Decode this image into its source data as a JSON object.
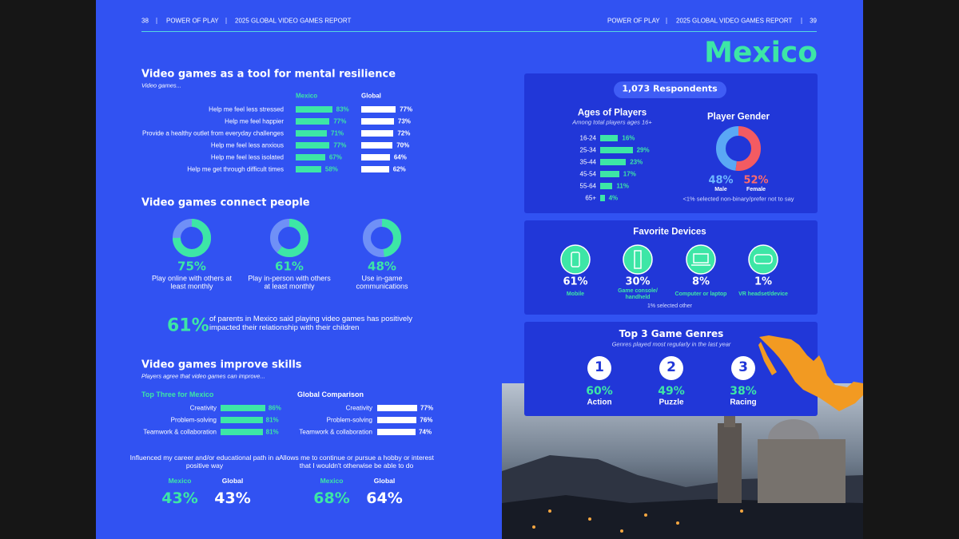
{
  "header": {
    "left_page": "38",
    "left_title": "POWER OF PLAY",
    "left_report": "2025 GLOBAL VIDEO GAMES REPORT",
    "right_title": "POWER OF PLAY",
    "right_report": "2025 GLOBAL VIDEO GAMES REPORT",
    "right_page": "39"
  },
  "country": "Mexico",
  "resilience": {
    "title": "Video games as a tool for mental resilience",
    "subtitle": "Video games...",
    "col_mexico": "Mexico",
    "col_global": "Global",
    "items": [
      "Help me feel less stressed",
      "Help me feel happier",
      "Provide a healthy outlet from everyday challenges",
      "Help me feel less anxious",
      "Help me feel less isolated",
      "Help me get through difficult times"
    ],
    "mexico_values": [
      83,
      77,
      71,
      77,
      67,
      58
    ],
    "mexico_value_labels": [
      "83%",
      "77%",
      "71%",
      "77%",
      "67%",
      "58%"
    ],
    "global_values": [
      77,
      73,
      72,
      70,
      64,
      62
    ],
    "global_value_labels": [
      "77%",
      "73%",
      "72%",
      "70%",
      "64%",
      "62%"
    ]
  },
  "connect": {
    "title": "Video games connect people",
    "donuts": [
      {
        "value": 75,
        "value_label": "75%",
        "caption": "Play online with others at least monthly"
      },
      {
        "value": 61,
        "value_label": "61%",
        "caption": "Play in-person with others at least monthly"
      },
      {
        "value": 48,
        "value_label": "48%",
        "caption": "Use in-game communications"
      }
    ],
    "parents_value": "61%",
    "parents_text": "of parents in Mexico said playing video games has positively impacted their relationship with their children"
  },
  "skills": {
    "title": "Video games improve skills",
    "subtitle": "Players agree that video games can improve...",
    "mexico_heading": "Top Three for Mexico",
    "global_heading": "Global Comparison",
    "mexico_items": [
      "Creativity",
      "Problem-solving",
      "Teamwork & collaboration"
    ],
    "mexico_values": [
      86,
      81,
      81
    ],
    "mexico_value_labels": [
      "86%",
      "81%",
      "81%"
    ],
    "global_items": [
      "Creativity",
      "Problem-solving",
      "Teamwork & collaboration"
    ],
    "global_values": [
      77,
      76,
      74
    ],
    "global_value_labels": [
      "77%",
      "76%",
      "74%"
    ],
    "stats": [
      {
        "caption": "Influenced my career and/or educational path in a positive way",
        "mexico_name": "Mexico",
        "global_name": "Global",
        "mexico": "43%",
        "global": "43%"
      },
      {
        "caption": "Allows me to continue or pursue a hobby or interest that I wouldn't otherwise be able to do",
        "mexico_name": "Mexico",
        "global_name": "Global",
        "mexico": "68%",
        "global": "64%"
      }
    ]
  },
  "respondents": "1,073 Respondents",
  "ages": {
    "title": "Ages of Players",
    "subtitle": "Among total players ages 16+",
    "groups": [
      "16-24",
      "25-34",
      "35-44",
      "45-54",
      "55-64",
      "65+"
    ],
    "values": [
      16,
      29,
      23,
      17,
      11,
      4
    ],
    "value_labels": [
      "16%",
      "29%",
      "23%",
      "17%",
      "11%",
      "4%"
    ]
  },
  "gender": {
    "title": "Player Gender",
    "male": 48,
    "male_label": "48%",
    "male_name": "Male",
    "female": 52,
    "female_label": "52%",
    "female_name": "Female",
    "note": "<1% selected non-binary/prefer not to say"
  },
  "devices": {
    "title": "Favorite Devices",
    "items": [
      {
        "value": "61%",
        "name": "Mobile"
      },
      {
        "value": "30%",
        "name": "Game console/ handheld"
      },
      {
        "value": "8%",
        "name": "Computer or laptop"
      },
      {
        "value": "1%",
        "name": "VR headset/device"
      }
    ],
    "note": "1% selected other"
  },
  "genres": {
    "title": "Top 3 Game Genres",
    "subtitle": "Genres played most regularly in the last year",
    "items": [
      {
        "rank": "1",
        "value": "60%",
        "name": "Action"
      },
      {
        "rank": "2",
        "value": "49%",
        "name": "Puzzle"
      },
      {
        "rank": "3",
        "value": "38%",
        "name": "Racing"
      }
    ]
  }
}
